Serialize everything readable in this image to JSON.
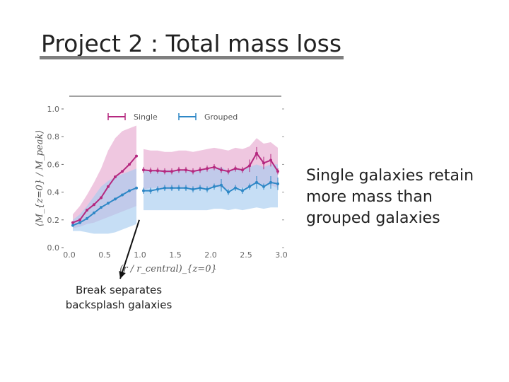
{
  "slide": {
    "title": "Project 2 : Total mass loss",
    "side_note": "Single galaxies retain more mass than grouped galaxies",
    "callout_lines": [
      "Break separates",
      "backsplash galaxies"
    ]
  },
  "chart_data": {
    "type": "line",
    "title": "",
    "xlabel": "(r / r_central)_{z=0}",
    "ylabel": "⟨M_{z=0} / M_peak⟩",
    "xlim": [
      0.0,
      3.0
    ],
    "ylim": [
      0.0,
      1.0
    ],
    "xticks": [
      "0.0",
      "0.5",
      "1.0",
      "1.5",
      "2.0",
      "2.5",
      "3.0"
    ],
    "yticks": [
      "0.0",
      "0.2",
      "0.4",
      "0.6",
      "0.8",
      "1.0"
    ],
    "grid": false,
    "legend_position": "top",
    "break_at_x": 1.0,
    "series": [
      {
        "name": "Single",
        "color": "#b5287f",
        "band_color": "#e6a9cf",
        "x": [
          0.05,
          0.15,
          0.25,
          0.35,
          0.45,
          0.55,
          0.65,
          0.75,
          0.85,
          0.95,
          1.05,
          1.15,
          1.25,
          1.35,
          1.45,
          1.55,
          1.65,
          1.75,
          1.85,
          1.95,
          2.05,
          2.15,
          2.25,
          2.35,
          2.45,
          2.55,
          2.65,
          2.75,
          2.85,
          2.95
        ],
        "y": [
          0.18,
          0.2,
          0.27,
          0.31,
          0.36,
          0.44,
          0.51,
          0.55,
          0.6,
          0.66,
          0.56,
          0.555,
          0.555,
          0.55,
          0.55,
          0.56,
          0.56,
          0.55,
          0.56,
          0.57,
          0.58,
          0.56,
          0.55,
          0.57,
          0.56,
          0.59,
          0.68,
          0.61,
          0.63,
          0.55
        ],
        "low": [
          0.14,
          0.15,
          0.17,
          0.18,
          0.2,
          0.22,
          0.24,
          0.26,
          0.28,
          0.3,
          0.42,
          0.43,
          0.43,
          0.42,
          0.42,
          0.43,
          0.43,
          0.42,
          0.43,
          0.43,
          0.44,
          0.43,
          0.42,
          0.43,
          0.43,
          0.44,
          0.46,
          0.45,
          0.45,
          0.43
        ],
        "high": [
          0.24,
          0.3,
          0.38,
          0.47,
          0.57,
          0.7,
          0.79,
          0.84,
          0.86,
          0.88,
          0.71,
          0.7,
          0.7,
          0.69,
          0.69,
          0.7,
          0.7,
          0.69,
          0.7,
          0.71,
          0.72,
          0.71,
          0.7,
          0.72,
          0.71,
          0.73,
          0.79,
          0.75,
          0.76,
          0.72
        ]
      },
      {
        "name": "Grouped",
        "color": "#2e87c6",
        "band_color": "#a8cdf0",
        "x": [
          0.05,
          0.15,
          0.25,
          0.35,
          0.45,
          0.55,
          0.65,
          0.75,
          0.85,
          0.95,
          1.05,
          1.15,
          1.25,
          1.35,
          1.45,
          1.55,
          1.65,
          1.75,
          1.85,
          1.95,
          2.05,
          2.15,
          2.25,
          2.35,
          2.45,
          2.55,
          2.65,
          2.75,
          2.85,
          2.95
        ],
        "y": [
          0.16,
          0.18,
          0.21,
          0.25,
          0.29,
          0.32,
          0.35,
          0.38,
          0.41,
          0.43,
          0.41,
          0.41,
          0.42,
          0.43,
          0.43,
          0.43,
          0.43,
          0.42,
          0.43,
          0.42,
          0.44,
          0.45,
          0.4,
          0.43,
          0.41,
          0.44,
          0.47,
          0.44,
          0.47,
          0.46
        ],
        "low": [
          0.12,
          0.12,
          0.11,
          0.1,
          0.1,
          0.1,
          0.11,
          0.13,
          0.15,
          0.17,
          0.27,
          0.27,
          0.27,
          0.27,
          0.27,
          0.27,
          0.27,
          0.27,
          0.27,
          0.27,
          0.28,
          0.28,
          0.27,
          0.28,
          0.27,
          0.28,
          0.29,
          0.28,
          0.29,
          0.29
        ],
        "high": [
          0.2,
          0.24,
          0.3,
          0.37,
          0.44,
          0.48,
          0.51,
          0.53,
          0.55,
          0.57,
          0.56,
          0.56,
          0.56,
          0.56,
          0.56,
          0.56,
          0.56,
          0.56,
          0.56,
          0.56,
          0.57,
          0.58,
          0.55,
          0.57,
          0.56,
          0.58,
          0.6,
          0.58,
          0.6,
          0.6
        ]
      }
    ]
  }
}
